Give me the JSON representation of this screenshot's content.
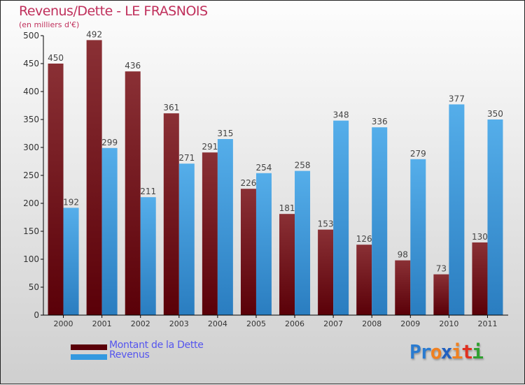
{
  "chart_data": {
    "type": "bar",
    "title": "Revenus/Dette - LE FRASNOIS",
    "subtitle": "(en milliers d'€)",
    "xlabel": "",
    "ylabel": "",
    "ylim": [
      0,
      500
    ],
    "yticks": [
      0,
      50,
      100,
      150,
      200,
      250,
      300,
      350,
      400,
      450,
      500
    ],
    "categories": [
      "2000",
      "2001",
      "2002",
      "2003",
      "2004",
      "2005",
      "2006",
      "2007",
      "2008",
      "2009",
      "2010",
      "2011"
    ],
    "series": [
      {
        "name": "Montant de la Dette",
        "color": "#6a0f14",
        "values": [
          450,
          492,
          436,
          361,
          291,
          226,
          181,
          153,
          126,
          98,
          73,
          130
        ]
      },
      {
        "name": "Revenus",
        "color": "#3d9ee0",
        "values": [
          192,
          299,
          211,
          271,
          315,
          254,
          258,
          348,
          336,
          279,
          377,
          350
        ]
      }
    ],
    "legend_position": "bottom-left",
    "grid": false
  },
  "logo": {
    "text": "Proxiti",
    "letters": [
      {
        "ch": "P",
        "color": "#2a7bd0"
      },
      {
        "ch": "r",
        "color": "#2a7bd0"
      },
      {
        "ch": "o",
        "color": "#f08020"
      },
      {
        "ch": "x",
        "color": "#2060c0"
      },
      {
        "ch": "i",
        "color": "#f08020"
      },
      {
        "ch": "t",
        "color": "#e03020"
      },
      {
        "ch": "i",
        "color": "#30a030"
      }
    ]
  }
}
